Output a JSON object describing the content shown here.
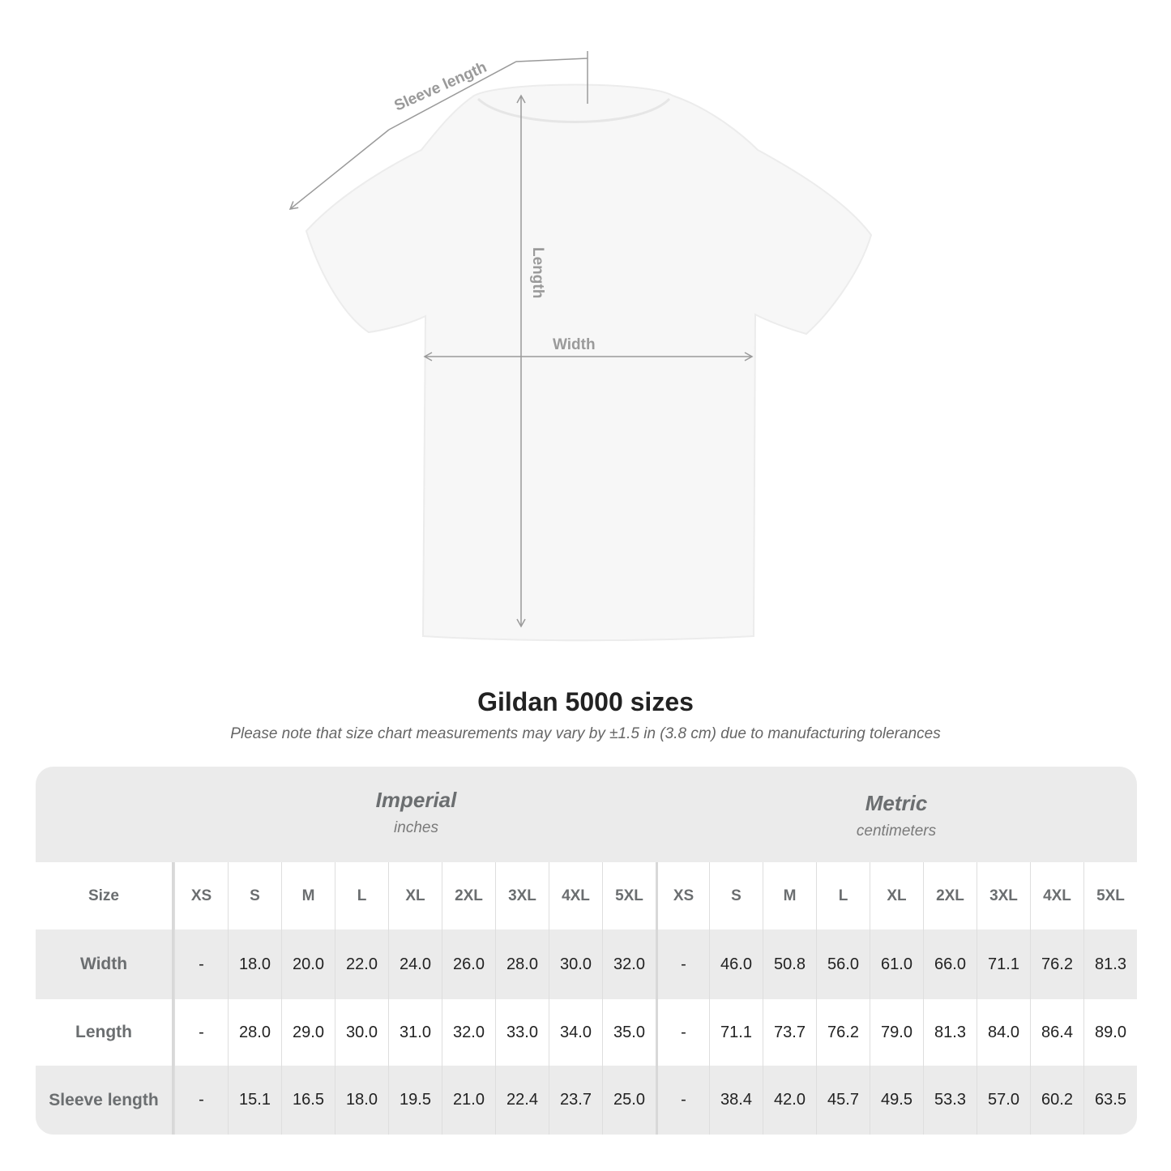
{
  "diagram": {
    "labels": {
      "sleeve": "Sleeve length",
      "length": "Length",
      "width": "Width"
    },
    "shirt_color": "#f7f7f7",
    "annotation_color": "#9a9a9a"
  },
  "title": "Gildan 5000 sizes",
  "note": "Please note that size chart measurements may vary by ±1.5 in (3.8 cm) due to manufacturing tolerances",
  "table": {
    "imperial": {
      "name": "Imperial",
      "unit": "inches"
    },
    "metric": {
      "name": "Metric",
      "unit": "centimeters"
    },
    "size_label": "Size",
    "sizes": [
      "XS",
      "S",
      "M",
      "L",
      "XL",
      "2XL",
      "3XL",
      "4XL",
      "5XL"
    ],
    "rows": [
      {
        "label": "Width",
        "imperial": [
          "-",
          "18.0",
          "20.0",
          "22.0",
          "24.0",
          "26.0",
          "28.0",
          "30.0",
          "32.0"
        ],
        "metric": [
          "-",
          "46.0",
          "50.8",
          "56.0",
          "61.0",
          "66.0",
          "71.1",
          "76.2",
          "81.3"
        ]
      },
      {
        "label": "Length",
        "imperial": [
          "-",
          "28.0",
          "29.0",
          "30.0",
          "31.0",
          "32.0",
          "33.0",
          "34.0",
          "35.0"
        ],
        "metric": [
          "-",
          "71.1",
          "73.7",
          "76.2",
          "79.0",
          "81.3",
          "84.0",
          "86.4",
          "89.0"
        ]
      },
      {
        "label": "Sleeve length",
        "imperial": [
          "-",
          "15.1",
          "16.5",
          "18.0",
          "19.5",
          "21.0",
          "22.4",
          "23.7",
          "25.0"
        ],
        "metric": [
          "-",
          "38.4",
          "42.0",
          "45.7",
          "49.5",
          "53.3",
          "57.0",
          "60.2",
          "63.5"
        ]
      }
    ]
  }
}
